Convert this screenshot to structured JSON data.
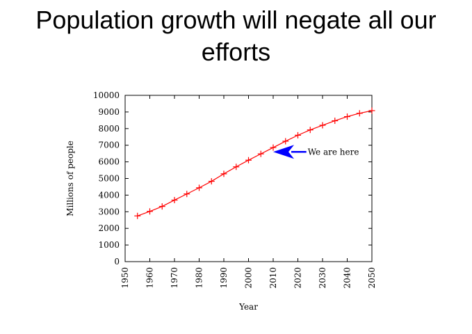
{
  "slide": {
    "title": "Population growth will negate all our efforts"
  },
  "colors": {
    "series": "#ff0000",
    "arrow": "#0000ff",
    "axis": "#000000"
  },
  "chart_data": {
    "type": "line",
    "xlabel": "Year",
    "ylabel": "Millions of people",
    "xlim": [
      1950,
      2050
    ],
    "ylim": [
      0,
      10000
    ],
    "xticks": [
      1950,
      1960,
      1970,
      1980,
      1990,
      2000,
      2010,
      2020,
      2030,
      2040,
      2050
    ],
    "yticks": [
      0,
      1000,
      2000,
      3000,
      4000,
      5000,
      6000,
      7000,
      8000,
      9000,
      10000
    ],
    "grid": false,
    "marker": "plus",
    "series": [
      {
        "x": [
          1955,
          1960,
          1965,
          1970,
          1975,
          1980,
          1985,
          1990,
          1995,
          2000,
          2005,
          2010,
          2015,
          2020,
          2025,
          2030,
          2035,
          2040,
          2045,
          2050
        ],
        "y": [
          2750,
          3020,
          3320,
          3700,
          4070,
          4440,
          4830,
          5280,
          5700,
          6100,
          6480,
          6860,
          7240,
          7600,
          7920,
          8200,
          8470,
          8720,
          8920,
          9080
        ]
      }
    ],
    "annotations": [
      {
        "text": "We are here",
        "arrow_to": {
          "x": 2010,
          "y": 6600
        },
        "text_at": {
          "x": 2024,
          "y": 6600
        }
      }
    ]
  }
}
